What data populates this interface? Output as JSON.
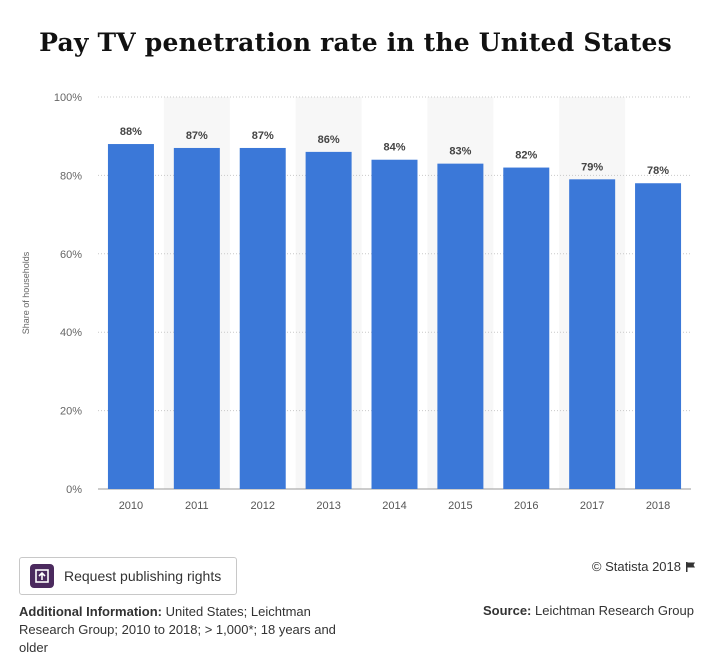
{
  "chart_data": {
    "type": "bar",
    "title": "Pay TV penetration rate in the United States",
    "ylabel": "Share of households",
    "xlabel": "",
    "categories": [
      "2010",
      "2011",
      "2012",
      "2013",
      "2014",
      "2015",
      "2016",
      "2017",
      "2018"
    ],
    "values": [
      88,
      87,
      87,
      86,
      84,
      83,
      82,
      79,
      78
    ],
    "data_labels": [
      "88%",
      "87%",
      "87%",
      "86%",
      "84%",
      "83%",
      "82%",
      "79%",
      "78%"
    ],
    "ylim": [
      0,
      100
    ],
    "yticks": [
      0,
      20,
      40,
      60,
      80,
      100
    ],
    "ytick_labels": [
      "0%",
      "20%",
      "40%",
      "60%",
      "80%",
      "100%"
    ],
    "grid": true,
    "bar_color": "#3b78d8",
    "band_color": "#f7f7f7"
  },
  "footer": {
    "button_label": "Request publishing rights",
    "copyright": "© Statista 2018",
    "additional_info_label": "Additional Information:",
    "additional_info_text": "United States; Leichtman Research Group; 2010 to 2018; > 1,000*; 18 years and older",
    "source_label": "Source:",
    "source_text": "Leichtman Research Group"
  }
}
